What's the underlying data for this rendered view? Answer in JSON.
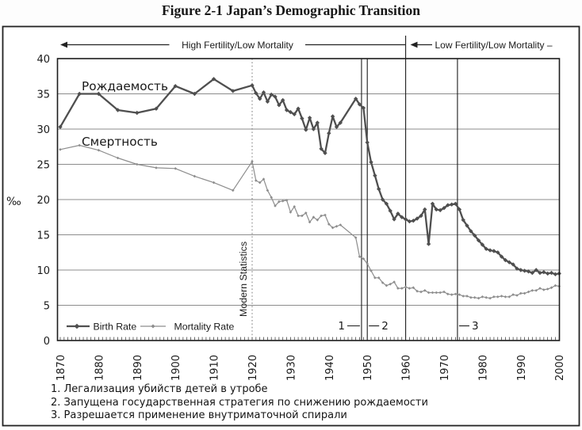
{
  "page": {
    "title": "Figure 2-1 Japan’s Demographic Transition"
  },
  "footnotes": [
    "1. Легализация убийств детей в утробе",
    "2. Запущена государственная стратегия по снижению рождаемости",
    "3. Разрешается применение внутриматочной спирали"
  ],
  "colors": {
    "birth": "#4f4f4f",
    "mortality": "#8d8d8d",
    "grid": "#8c8c8c",
    "frame": "#1c1c1c",
    "dotted_line": "#7a7a7a"
  },
  "chart_data": {
    "type": "line",
    "title": "Figure 2-1 Japan’s Demographic Transition",
    "xlabel": "",
    "ylabel": "‰",
    "ylim": [
      0,
      40
    ],
    "xlim": [
      1869,
      2002
    ],
    "y_ticks": [
      0,
      5,
      10,
      15,
      20,
      25,
      30,
      35,
      40
    ],
    "x_ticks": [
      1870,
      1880,
      1890,
      1900,
      1910,
      1920,
      1930,
      1940,
      1950,
      1960,
      1970,
      1980,
      1990,
      2000
    ],
    "x_minor_tick_interval_years": 1,
    "grid": "horizontal",
    "legend_position": "bottom-left",
    "phases": [
      {
        "label": "High Fertility/Low Mortality",
        "from": 1870,
        "to": 1960
      },
      {
        "label": "Low Fertility/Low Mortality –",
        "from": 1960,
        "to": 2000
      }
    ],
    "series_labels": [
      {
        "text": "Рождаемость",
        "x": 1876,
        "y": 36.5
      },
      {
        "text": "Смертность",
        "x": 1876,
        "y": 28.5
      }
    ],
    "vlines": [
      {
        "label": "1",
        "year": 1948.5,
        "style": "solid",
        "label_side": "left"
      },
      {
        "label": "2",
        "year": 1950,
        "style": "solid",
        "label_side": "right"
      },
      {
        "label": "3",
        "year": 1973.5,
        "style": "solid",
        "label_side": "right"
      },
      {
        "label": "",
        "year": 1960,
        "style": "solid",
        "extends_above": true
      },
      {
        "label": "Modern Statistics",
        "year": 1920,
        "style": "dotted"
      }
    ],
    "series": [
      {
        "name": "Birth Rate",
        "color": "#4f4f4f",
        "marker": "diamond",
        "line_width": 2.3,
        "points": [
          [
            1870,
            30.3
          ],
          [
            1875,
            35.0
          ],
          [
            1880,
            35.0
          ],
          [
            1885,
            32.7
          ],
          [
            1890,
            32.3
          ],
          [
            1895,
            32.9
          ],
          [
            1900,
            36.1
          ],
          [
            1905,
            35.0
          ],
          [
            1910,
            37.1
          ],
          [
            1915,
            35.4
          ],
          [
            1920,
            36.2
          ],
          [
            1921,
            35.1
          ],
          [
            1922,
            34.3
          ],
          [
            1923,
            35.2
          ],
          [
            1924,
            33.9
          ],
          [
            1925,
            34.9
          ],
          [
            1926,
            34.6
          ],
          [
            1927,
            33.4
          ],
          [
            1928,
            34.1
          ],
          [
            1929,
            32.7
          ],
          [
            1930,
            32.4
          ],
          [
            1931,
            32.1
          ],
          [
            1932,
            32.9
          ],
          [
            1933,
            31.5
          ],
          [
            1934,
            29.9
          ],
          [
            1935,
            31.6
          ],
          [
            1936,
            30.0
          ],
          [
            1937,
            30.9
          ],
          [
            1938,
            27.2
          ],
          [
            1939,
            26.6
          ],
          [
            1940,
            29.4
          ],
          [
            1941,
            31.8
          ],
          [
            1942,
            30.3
          ],
          [
            1943,
            30.9
          ],
          [
            1947,
            34.3
          ],
          [
            1948,
            33.5
          ],
          [
            1949,
            33.0
          ],
          [
            1950,
            28.1
          ],
          [
            1951,
            25.3
          ],
          [
            1952,
            23.4
          ],
          [
            1953,
            21.5
          ],
          [
            1954,
            20.0
          ],
          [
            1955,
            19.4
          ],
          [
            1956,
            18.4
          ],
          [
            1957,
            17.2
          ],
          [
            1958,
            18.0
          ],
          [
            1959,
            17.5
          ],
          [
            1960,
            17.2
          ],
          [
            1961,
            16.9
          ],
          [
            1962,
            17.0
          ],
          [
            1963,
            17.3
          ],
          [
            1964,
            17.7
          ],
          [
            1965,
            18.6
          ],
          [
            1966,
            13.7
          ],
          [
            1967,
            19.4
          ],
          [
            1968,
            18.6
          ],
          [
            1969,
            18.5
          ],
          [
            1970,
            18.8
          ],
          [
            1971,
            19.2
          ],
          [
            1972,
            19.3
          ],
          [
            1973,
            19.4
          ],
          [
            1974,
            18.6
          ],
          [
            1975,
            17.1
          ],
          [
            1976,
            16.3
          ],
          [
            1977,
            15.5
          ],
          [
            1978,
            14.9
          ],
          [
            1979,
            14.2
          ],
          [
            1980,
            13.6
          ],
          [
            1981,
            13.0
          ],
          [
            1982,
            12.8
          ],
          [
            1983,
            12.7
          ],
          [
            1984,
            12.5
          ],
          [
            1985,
            11.9
          ],
          [
            1986,
            11.4
          ],
          [
            1987,
            11.1
          ],
          [
            1988,
            10.8
          ],
          [
            1989,
            10.2
          ],
          [
            1990,
            10.0
          ],
          [
            1991,
            9.9
          ],
          [
            1992,
            9.8
          ],
          [
            1993,
            9.6
          ],
          [
            1994,
            10.0
          ],
          [
            1995,
            9.6
          ],
          [
            1996,
            9.7
          ],
          [
            1997,
            9.5
          ],
          [
            1998,
            9.6
          ],
          [
            1999,
            9.4
          ],
          [
            2000,
            9.5
          ]
        ]
      },
      {
        "name": "Mortality Rate",
        "color": "#8d8d8d",
        "marker": "diamond",
        "line_width": 1.2,
        "points": [
          [
            1870,
            27.1
          ],
          [
            1875,
            27.7
          ],
          [
            1880,
            27.0
          ],
          [
            1885,
            25.9
          ],
          [
            1890,
            25.0
          ],
          [
            1895,
            24.5
          ],
          [
            1900,
            24.4
          ],
          [
            1905,
            23.3
          ],
          [
            1910,
            22.4
          ],
          [
            1915,
            21.3
          ],
          [
            1920,
            25.4
          ],
          [
            1921,
            22.7
          ],
          [
            1922,
            22.4
          ],
          [
            1923,
            22.9
          ],
          [
            1924,
            21.3
          ],
          [
            1925,
            20.3
          ],
          [
            1926,
            19.1
          ],
          [
            1927,
            19.7
          ],
          [
            1928,
            19.8
          ],
          [
            1929,
            19.9
          ],
          [
            1930,
            18.2
          ],
          [
            1931,
            19.0
          ],
          [
            1932,
            17.7
          ],
          [
            1933,
            17.7
          ],
          [
            1934,
            18.1
          ],
          [
            1935,
            16.8
          ],
          [
            1936,
            17.5
          ],
          [
            1937,
            17.1
          ],
          [
            1938,
            17.7
          ],
          [
            1939,
            17.8
          ],
          [
            1940,
            16.5
          ],
          [
            1941,
            16.0
          ],
          [
            1942,
            16.2
          ],
          [
            1943,
            16.4
          ],
          [
            1947,
            14.6
          ],
          [
            1948,
            11.9
          ],
          [
            1949,
            11.6
          ],
          [
            1950,
            10.9
          ],
          [
            1951,
            9.9
          ],
          [
            1952,
            8.9
          ],
          [
            1953,
            8.9
          ],
          [
            1954,
            8.2
          ],
          [
            1955,
            7.8
          ],
          [
            1956,
            8.0
          ],
          [
            1957,
            8.3
          ],
          [
            1958,
            7.4
          ],
          [
            1959,
            7.4
          ],
          [
            1960,
            7.6
          ],
          [
            1961,
            7.4
          ],
          [
            1962,
            7.5
          ],
          [
            1963,
            7.0
          ],
          [
            1964,
            6.9
          ],
          [
            1965,
            7.1
          ],
          [
            1966,
            6.8
          ],
          [
            1967,
            6.8
          ],
          [
            1968,
            6.8
          ],
          [
            1969,
            6.8
          ],
          [
            1970,
            6.9
          ],
          [
            1971,
            6.6
          ],
          [
            1972,
            6.5
          ],
          [
            1973,
            6.6
          ],
          [
            1974,
            6.5
          ],
          [
            1975,
            6.3
          ],
          [
            1976,
            6.3
          ],
          [
            1977,
            6.1
          ],
          [
            1978,
            6.1
          ],
          [
            1979,
            6.0
          ],
          [
            1980,
            6.2
          ],
          [
            1981,
            6.1
          ],
          [
            1982,
            6.0
          ],
          [
            1983,
            6.2
          ],
          [
            1984,
            6.2
          ],
          [
            1985,
            6.3
          ],
          [
            1986,
            6.2
          ],
          [
            1987,
            6.2
          ],
          [
            1988,
            6.5
          ],
          [
            1989,
            6.4
          ],
          [
            1990,
            6.7
          ],
          [
            1991,
            6.7
          ],
          [
            1992,
            6.9
          ],
          [
            1993,
            7.1
          ],
          [
            1994,
            7.1
          ],
          [
            1995,
            7.4
          ],
          [
            1996,
            7.2
          ],
          [
            1997,
            7.3
          ],
          [
            1998,
            7.5
          ],
          [
            1999,
            7.8
          ],
          [
            2000,
            7.7
          ]
        ]
      }
    ]
  }
}
